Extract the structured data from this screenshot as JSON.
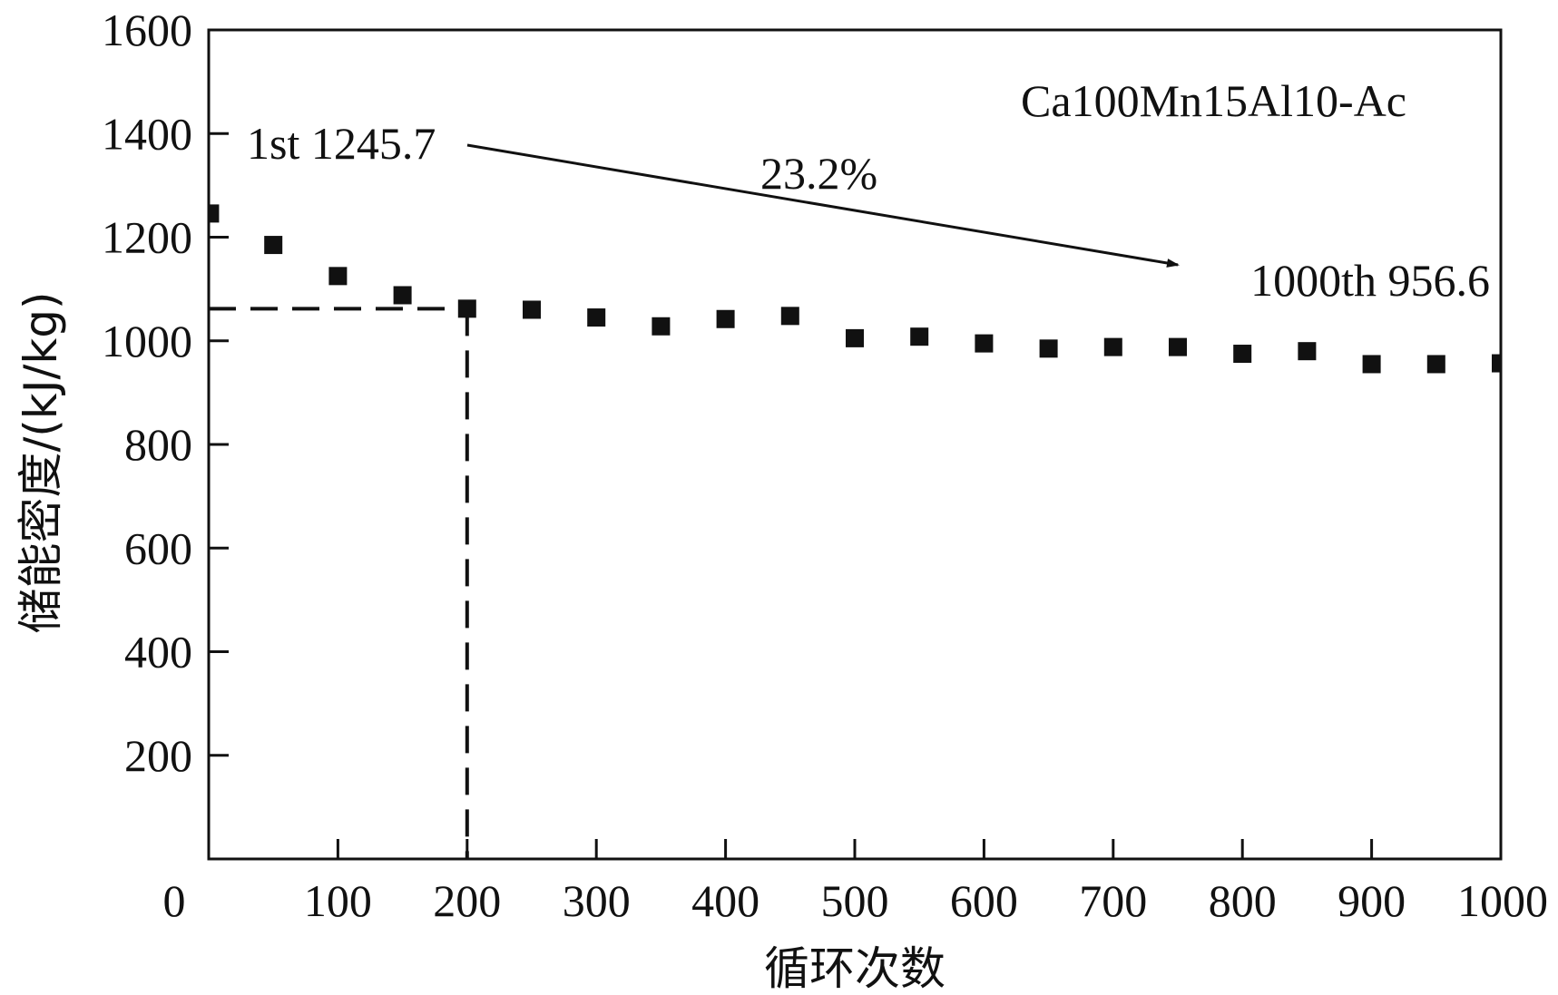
{
  "chart_data": {
    "type": "scatter",
    "title": "",
    "xlabel": "循环次数",
    "ylabel": "储能密度/(kJ/kg)",
    "xlim": [
      0,
      1000
    ],
    "ylim": [
      0,
      1600
    ],
    "x_ticks": [
      0,
      100,
      200,
      300,
      400,
      500,
      600,
      700,
      800,
      900,
      1000
    ],
    "y_ticks": [
      200,
      400,
      600,
      800,
      1000,
      1200,
      1400,
      1600
    ],
    "grid": false,
    "series": [
      {
        "name": "Ca100Mn15Al10-Ac",
        "marker": "square",
        "color": "#111111",
        "x": [
          1,
          50,
          100,
          150,
          200,
          250,
          300,
          350,
          400,
          450,
          500,
          550,
          600,
          650,
          700,
          750,
          800,
          850,
          900,
          950,
          1000
        ],
        "y": [
          1245.7,
          1185,
          1125,
          1088,
          1062,
          1060,
          1045,
          1028,
          1042,
          1048,
          1005,
          1008,
          995,
          985,
          988,
          988,
          975,
          980,
          955,
          955,
          956.6
        ]
      }
    ],
    "reference_lines": {
      "horizontal_y": 1062,
      "vertical_x": 200
    },
    "annotations": {
      "sample_label": "Ca100Mn15Al10-Ac",
      "first_cycle": "1st 1245.7",
      "last_cycle": "1000th 956.6",
      "decline": "23.2%"
    }
  }
}
